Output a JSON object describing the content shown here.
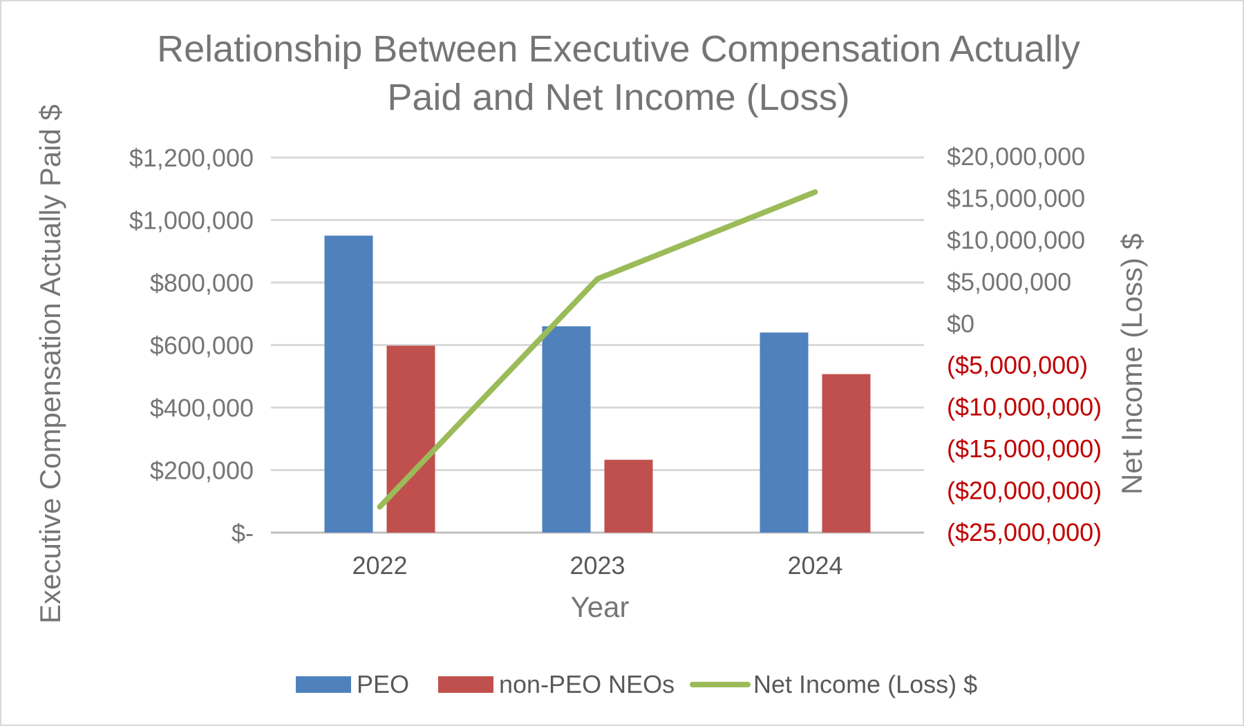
{
  "chart_data": {
    "type": "bar",
    "title_lines": [
      "Relationship Between Executive Compensation Actually",
      "Paid and Net Income (Loss)"
    ],
    "xlabel": "Year",
    "ylabel": "Executive Compensation Actually Paid $",
    "y2label": "Net Income (Loss) $",
    "categories": [
      "2022",
      "2023",
      "2024"
    ],
    "ylim": [
      0,
      1200000
    ],
    "y_ticks": [
      {
        "value": 0,
        "label": "$-"
      },
      {
        "value": 200000,
        "label": "$200,000"
      },
      {
        "value": 400000,
        "label": "$400,000"
      },
      {
        "value": 600000,
        "label": "$600,000"
      },
      {
        "value": 800000,
        "label": "$800,000"
      },
      {
        "value": 1000000,
        "label": "$1,000,000"
      },
      {
        "value": 1200000,
        "label": "$1,200,000"
      }
    ],
    "y2lim": [
      -25000000,
      20000000
    ],
    "y2_ticks": [
      {
        "value": 20000000,
        "label": "$20,000,000",
        "color": "#757575"
      },
      {
        "value": 15000000,
        "label": "$15,000,000",
        "color": "#757575"
      },
      {
        "value": 10000000,
        "label": "$10,000,000",
        "color": "#757575"
      },
      {
        "value": 5000000,
        "label": "$5,000,000",
        "color": "#757575"
      },
      {
        "value": 0,
        "label": "$0",
        "color": "#757575"
      },
      {
        "value": -5000000,
        "label": "($5,000,000)",
        "color": "#c00000"
      },
      {
        "value": -10000000,
        "label": "($10,000,000)",
        "color": "#c00000"
      },
      {
        "value": -15000000,
        "label": "($15,000,000)",
        "color": "#c00000"
      },
      {
        "value": -20000000,
        "label": "($20,000,000)",
        "color": "#c00000"
      },
      {
        "value": -25000000,
        "label": "($25,000,000)",
        "color": "#c00000"
      }
    ],
    "series": [
      {
        "name": "PEO",
        "type": "bar",
        "axis": "left",
        "color": "#4f81bd",
        "values": [
          950000,
          660000,
          640000
        ]
      },
      {
        "name": "non-PEO NEOs",
        "type": "bar",
        "axis": "left",
        "color": "#c0504d",
        "values": [
          598000,
          233000,
          507000
        ]
      },
      {
        "name": "Net Income (Loss) $",
        "type": "line",
        "axis": "right",
        "color": "#9bbb59",
        "values": [
          -22000000,
          5300000,
          15700000
        ]
      }
    ],
    "grid": true,
    "legend": "bottom"
  }
}
